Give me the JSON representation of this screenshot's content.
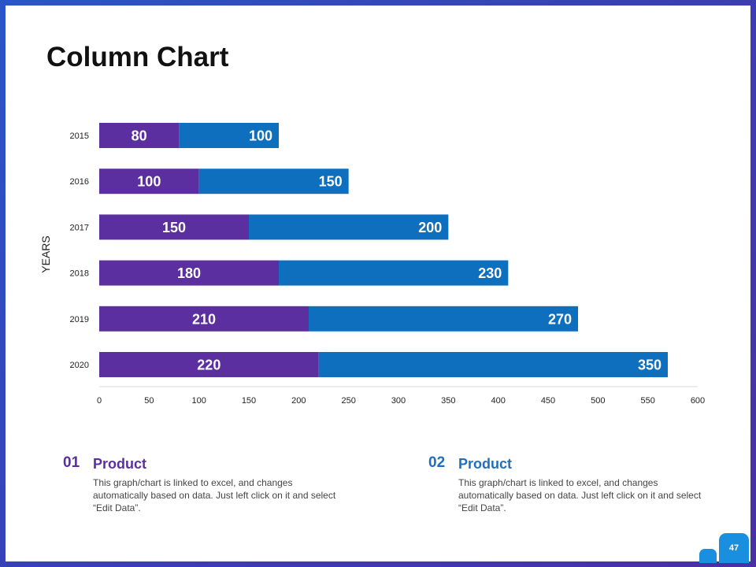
{
  "slide": {
    "title": "Column Chart",
    "page_number": "47"
  },
  "colors": {
    "series1": "#5b2fa0",
    "series2": "#0f6fbf",
    "legend1": "#5b2fa0",
    "legend2": "#1f6fbf"
  },
  "legend": [
    {
      "number": "01",
      "heading": "Product",
      "text": "This graph/chart is linked to excel, and changes automatically based on data. Just left click on it and select “Edit Data”."
    },
    {
      "number": "02",
      "heading": "Product",
      "text": "This graph/chart is linked to excel, and changes automatically based on data. Just left click on it and select “Edit Data”."
    }
  ],
  "chart_data": {
    "type": "bar",
    "orientation": "horizontal",
    "stacked": true,
    "categories": [
      "2015",
      "2016",
      "2017",
      "2018",
      "2019",
      "2020"
    ],
    "series": [
      {
        "values": [
          80,
          100,
          150,
          180,
          210,
          220
        ]
      },
      {
        "values": [
          100,
          150,
          200,
          230,
          270,
          350
        ]
      }
    ],
    "xlim": [
      0,
      600
    ],
    "xticks": [
      "0",
      "50",
      "100",
      "150",
      "200",
      "250",
      "300",
      "350",
      "400",
      "450",
      "500",
      "550",
      "600"
    ],
    "ylabel": "YEARS",
    "grid": false
  }
}
